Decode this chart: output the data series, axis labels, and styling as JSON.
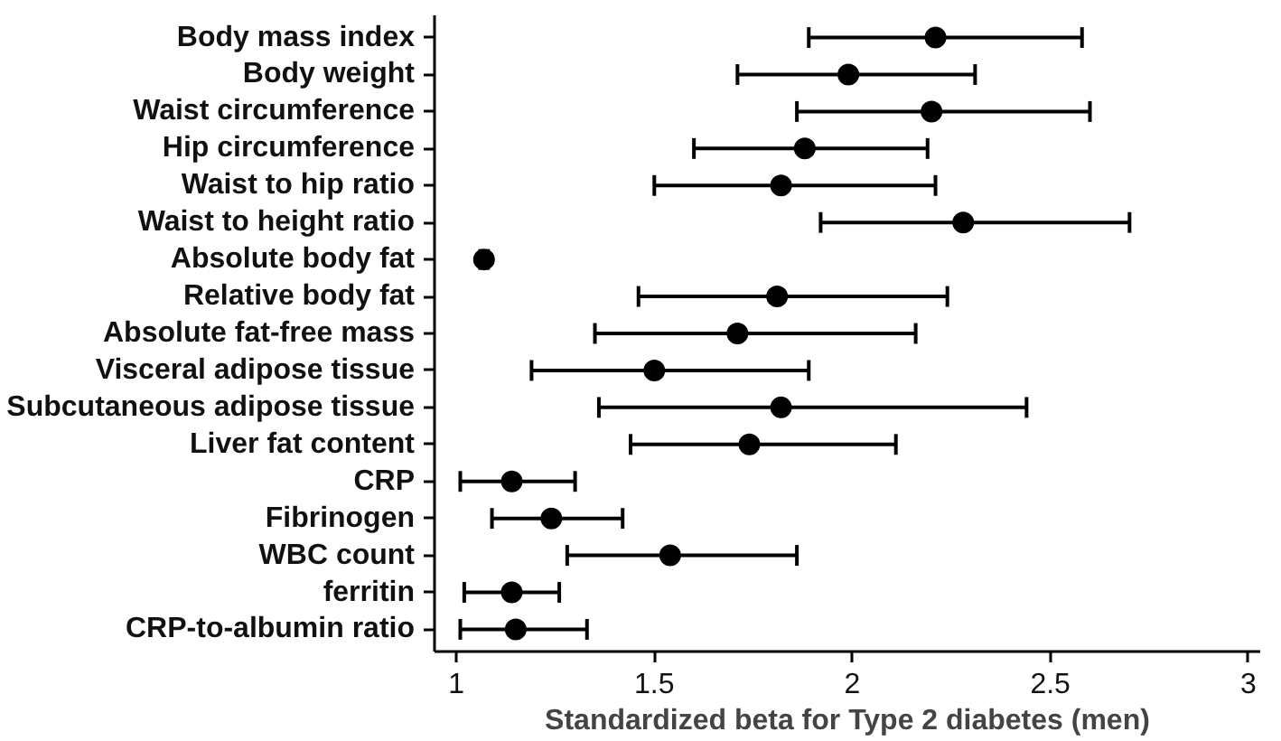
{
  "chart_data": {
    "type": "scatter",
    "orientation": "horizontal",
    "xlabel": "Standardized beta for Type 2 diabetes (men)",
    "categories": [
      "Body mass index",
      "Body weight",
      "Waist circumference",
      "Hip circumference",
      "Waist to hip ratio",
      "Waist to height ratio",
      "Absolute body fat",
      "Relative body fat",
      "Absolute fat-free mass",
      "Visceral adipose tissue",
      "Subcutaneous adipose tissue",
      "Liver fat content",
      "CRP",
      "Fibrinogen",
      "WBC count",
      "ferritin",
      "CRP-to-albumin ratio"
    ],
    "values": [
      2.21,
      1.99,
      2.2,
      1.88,
      1.82,
      2.28,
      1.07,
      1.81,
      1.71,
      1.5,
      1.82,
      1.74,
      1.14,
      1.24,
      1.54,
      1.14,
      1.15
    ],
    "errors": [
      [
        1.89,
        2.58
      ],
      [
        1.71,
        2.31
      ],
      [
        1.86,
        2.6
      ],
      [
        1.6,
        2.19
      ],
      [
        1.5,
        2.21
      ],
      [
        1.92,
        2.7
      ],
      [
        1.06,
        1.08
      ],
      [
        1.46,
        2.24
      ],
      [
        1.35,
        2.16
      ],
      [
        1.19,
        1.89
      ],
      [
        1.36,
        2.44
      ],
      [
        1.44,
        2.11
      ],
      [
        1.01,
        1.3
      ],
      [
        1.09,
        1.42
      ],
      [
        1.28,
        1.86
      ],
      [
        1.02,
        1.26
      ],
      [
        1.01,
        1.33
      ]
    ],
    "color": "#000000",
    "marker": "circle",
    "grid": false,
    "xlim": [
      0.945,
      3.03
    ],
    "xticks": [
      1,
      {
        "value": 1.5,
        "label": "1.5"
      },
      2,
      {
        "value": 2.5,
        "label": "2.5"
      },
      3
    ]
  }
}
